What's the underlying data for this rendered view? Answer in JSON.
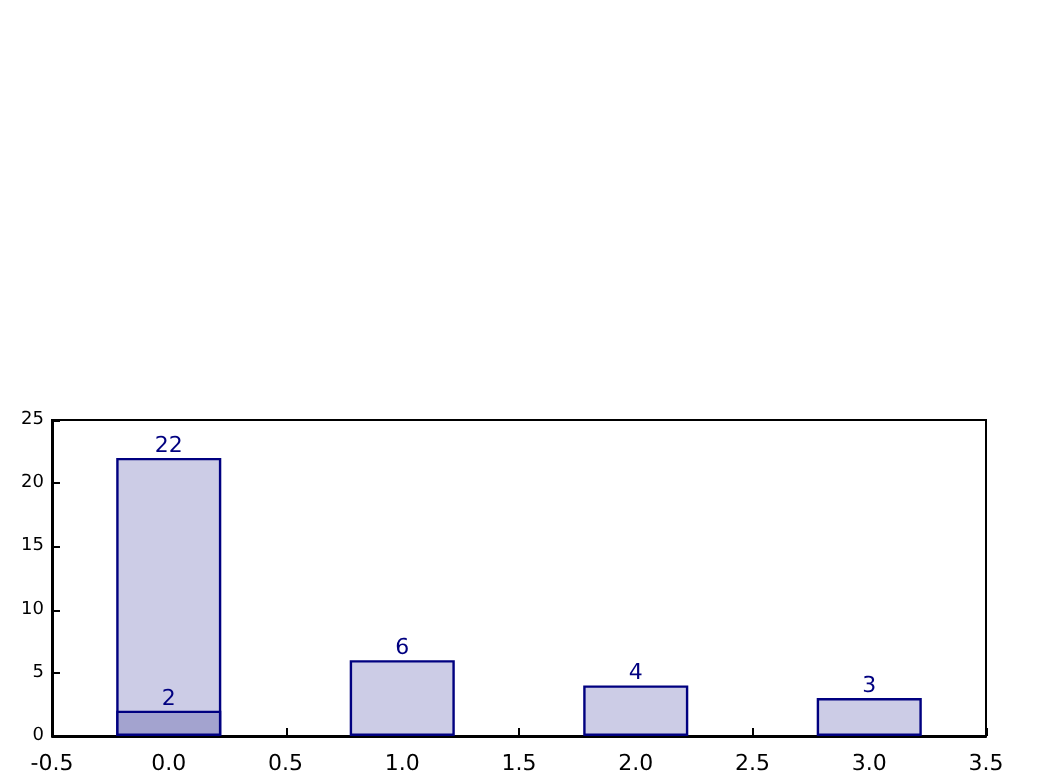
{
  "chart_data": {
    "type": "bar",
    "x": [
      0,
      1,
      2,
      3
    ],
    "series": [
      {
        "color": "#cccce6",
        "values": [
          22,
          6,
          4,
          3
        ]
      },
      {
        "color": "#a3a3cf",
        "x": [
          0
        ],
        "values": [
          2
        ]
      }
    ],
    "xlim": [
      -0.5,
      3.5
    ],
    "xticks": [
      -0.5,
      {
        "value": 0,
        "label": "0.0"
      },
      0.5,
      {
        "value": 1,
        "label": "1.0"
      },
      1.5,
      {
        "value": 2,
        "label": "2.0"
      },
      2.5,
      {
        "value": 3,
        "label": "3.0"
      },
      3.5
    ],
    "ylim": [
      0,
      25
    ],
    "yticks": [
      0,
      5,
      10,
      15,
      20,
      25
    ],
    "data_labels": true,
    "grid": false
  }
}
